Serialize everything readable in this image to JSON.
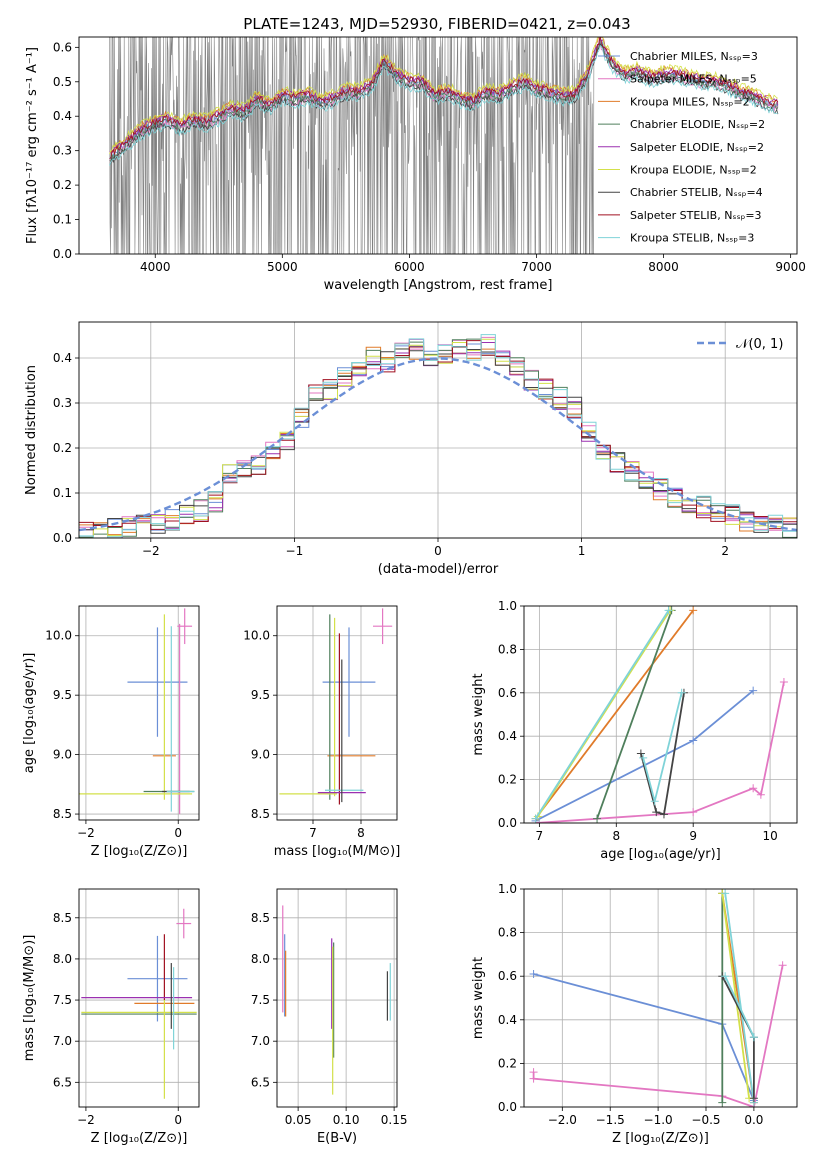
{
  "title": "PLATE=1243, MJD=52930, FIBERID=0421, z=0.043",
  "colors": [
    "#6b8fd6",
    "#e377c2",
    "#e07b2a",
    "#4f7f5c",
    "#9b30b0",
    "#d3e04a",
    "#444444",
    "#a01020",
    "#7fd3d8"
  ],
  "spectrum_chart": {
    "type": "line",
    "xlabel": "wavelength [Angstrom, rest frame]",
    "ylabel": "Flux [fλ10⁻¹⁷ erg cm⁻² s⁻¹ A⁻¹]",
    "xlim": [
      3400,
      9050
    ],
    "ylim": [
      0,
      0.63
    ],
    "xticks": [
      "4000",
      "5000",
      "6000",
      "7000",
      "8000",
      "9000"
    ],
    "yticks": [
      "0.0",
      "0.1",
      "0.2",
      "0.3",
      "0.4",
      "0.5",
      "0.6"
    ],
    "data_color": "#808080",
    "continuum_x": [
      3640,
      3700,
      3800,
      3900,
      4000,
      4100,
      4200,
      4300,
      4400,
      4500,
      4600,
      4700,
      4800,
      4900,
      5000,
      5100,
      5200,
      5300,
      5400,
      5500,
      5600,
      5700,
      5800,
      5900,
      6000,
      6100,
      6200,
      6300,
      6400,
      6500,
      6600,
      6700,
      6800,
      6900,
      7000,
      7100,
      7200,
      7300,
      7400,
      7500,
      7600,
      7700,
      7800,
      7900,
      8000,
      8100,
      8200,
      8300,
      8400,
      8500,
      8600,
      8700,
      8800,
      8900
    ],
    "continuum_y": [
      0.28,
      0.3,
      0.33,
      0.36,
      0.38,
      0.39,
      0.37,
      0.39,
      0.38,
      0.4,
      0.42,
      0.41,
      0.45,
      0.43,
      0.46,
      0.45,
      0.46,
      0.44,
      0.45,
      0.47,
      0.47,
      0.49,
      0.56,
      0.52,
      0.5,
      0.5,
      0.46,
      0.47,
      0.45,
      0.44,
      0.47,
      0.46,
      0.48,
      0.5,
      0.48,
      0.47,
      0.46,
      0.46,
      0.52,
      0.62,
      0.55,
      0.52,
      0.53,
      0.51,
      0.52,
      0.52,
      0.51,
      0.5,
      0.5,
      0.49,
      0.47,
      0.46,
      0.44,
      0.43
    ],
    "legend": [
      "Chabrier MILES, Nₛₛₚ=3",
      "Salpeter MILES, Nₛₛₚ=5",
      "Kroupa MILES, Nₛₛₚ=2",
      "Chabrier ELODIE, Nₛₛₚ=2",
      "Salpeter ELODIE, Nₛₛₚ=2",
      "Kroupa ELODIE, Nₛₛₚ=2",
      "Chabrier STELIB, Nₛₛₚ=4",
      "Salpeter STELIB, Nₛₛₚ=3",
      "Kroupa STELIB, Nₛₛₚ=3"
    ]
  },
  "residual_chart": {
    "type": "bar",
    "xlabel": "(data-model)/error",
    "ylabel": "Normed distribution",
    "xlim": [
      -2.5,
      2.5
    ],
    "ylim": [
      0,
      0.48
    ],
    "xticks": [
      "−2",
      "−1",
      "0",
      "1",
      "2"
    ],
    "yticks": [
      "0.0",
      "0.1",
      "0.2",
      "0.3",
      "0.4"
    ],
    "legend_label": "𝒩(0, 1)",
    "bin_width": 0.1,
    "bin_centers": [
      -2.45,
      -2.35,
      -2.25,
      -2.15,
      -2.05,
      -1.95,
      -1.85,
      -1.75,
      -1.65,
      -1.55,
      -1.45,
      -1.35,
      -1.25,
      -1.15,
      -1.05,
      -0.95,
      -0.85,
      -0.75,
      -0.65,
      -0.55,
      -0.45,
      -0.35,
      -0.25,
      -0.15,
      -0.05,
      0.05,
      0.15,
      0.25,
      0.35,
      0.45,
      0.55,
      0.65,
      0.75,
      0.85,
      0.95,
      1.05,
      1.15,
      1.25,
      1.35,
      1.45,
      1.55,
      1.65,
      1.75,
      1.85,
      1.95,
      2.05,
      2.15,
      2.25,
      2.35,
      2.45
    ],
    "density_mean": [
      0.01,
      0.012,
      0.02,
      0.025,
      0.03,
      0.03,
      0.04,
      0.05,
      0.06,
      0.08,
      0.14,
      0.15,
      0.16,
      0.19,
      0.22,
      0.27,
      0.32,
      0.33,
      0.36,
      0.38,
      0.4,
      0.39,
      0.41,
      0.42,
      0.4,
      0.41,
      0.42,
      0.42,
      0.43,
      0.4,
      0.38,
      0.35,
      0.33,
      0.31,
      0.29,
      0.24,
      0.2,
      0.17,
      0.15,
      0.13,
      0.11,
      0.09,
      0.08,
      0.07,
      0.06,
      0.05,
      0.04,
      0.035,
      0.03,
      0.025
    ],
    "gaussian": {
      "mean": 0,
      "sigma": 1
    }
  },
  "age_z_chart": {
    "type": "scatter",
    "xlabel": "Z [log₁₀(Z/Z⊙)]",
    "ylabel": "age  [log₁₀(age/yr)]",
    "xlim": [
      -2.15,
      0.45
    ],
    "ylim": [
      8.45,
      10.25
    ],
    "xticks": [
      {
        "v": -2,
        "t": "−2"
      },
      {
        "v": 0,
        "t": "0"
      }
    ],
    "yticks": [
      {
        "v": 8.5,
        "t": "8.5"
      },
      {
        "v": 9.0,
        "t": "9.0"
      },
      {
        "v": 9.5,
        "t": "9.5"
      },
      {
        "v": 10.0,
        "t": "10.0"
      }
    ],
    "points": [
      {
        "x": -0.45,
        "y": 9.61,
        "ex": 0.65,
        "ey": 0.46,
        "c": 0
      },
      {
        "x": 0.14,
        "y": 10.08,
        "ex": 0.16,
        "ey": 0.15,
        "c": 1
      },
      {
        "x": 0.03,
        "y": 9.3,
        "ex": 0,
        "ey": 0.8,
        "c": 1
      },
      {
        "x": -0.3,
        "y": 8.99,
        "ex": 0.25,
        "ey": 0,
        "c": 2
      },
      {
        "x": -0.3,
        "y": 9.4,
        "ex": 0,
        "ey": 0.78,
        "c": 5
      },
      {
        "x": -0.95,
        "y": 8.67,
        "ex": 1.25,
        "ey": 0,
        "c": 5
      },
      {
        "x": -0.2,
        "y": 8.69,
        "ex": 0.55,
        "ey": 0,
        "c": 3
      },
      {
        "x": -0.15,
        "y": 9.3,
        "ex": 0,
        "ey": 0.78,
        "c": 8
      },
      {
        "x": -0.05,
        "y": 8.69,
        "ex": 0.3,
        "ey": 0,
        "c": 6
      },
      {
        "x": 0.05,
        "y": 8.69,
        "ex": 0.3,
        "ey": 0,
        "c": 8
      }
    ]
  },
  "age_mass_chart": {
    "type": "scatter",
    "xlabel": "mass [log₁₀(M/M⊙)]",
    "ylabel": "",
    "xlim": [
      6.25,
      8.75
    ],
    "ylim": [
      8.45,
      10.25
    ],
    "xticks": [
      {
        "v": 7,
        "t": "7"
      },
      {
        "v": 8,
        "t": "8"
      }
    ],
    "yticks": [
      {
        "v": 8.5,
        "t": "8.5"
      },
      {
        "v": 9.0,
        "t": "9.0"
      },
      {
        "v": 9.5,
        "t": "9.5"
      },
      {
        "v": 10.0,
        "t": "10.0"
      }
    ],
    "points": [
      {
        "x": 7.75,
        "y": 9.61,
        "ex": 0.55,
        "ey": 0.46,
        "c": 0
      },
      {
        "x": 8.45,
        "y": 10.08,
        "ex": 0.2,
        "ey": 0.15,
        "c": 1
      },
      {
        "x": 7.8,
        "y": 8.99,
        "ex": 0.5,
        "ey": 0,
        "c": 2
      },
      {
        "x": 7.35,
        "y": 9.4,
        "ex": 0,
        "ey": 0.78,
        "c": 3
      },
      {
        "x": 7.45,
        "y": 9.4,
        "ex": 0,
        "ey": 0.75,
        "c": 5
      },
      {
        "x": 7.55,
        "y": 9.3,
        "ex": 0,
        "ey": 0.72,
        "c": 7
      },
      {
        "x": 6.9,
        "y": 8.67,
        "ex": 0.6,
        "ey": 0,
        "c": 5
      },
      {
        "x": 7.6,
        "y": 8.68,
        "ex": 0.5,
        "ey": 0,
        "c": 4
      },
      {
        "x": 7.65,
        "y": 8.7,
        "ex": 0.4,
        "ey": 0,
        "c": 8
      },
      {
        "x": 7.6,
        "y": 9.2,
        "ex": 0,
        "ey": 0.6,
        "c": 6
      }
    ]
  },
  "weight_age_chart": {
    "type": "line",
    "xlabel": "age  [log₁₀(age/yr)]",
    "ylabel": "mass weight",
    "xlim": [
      6.8,
      10.35
    ],
    "ylim": [
      0,
      1
    ],
    "xticks": [
      {
        "v": 7,
        "t": "7"
      },
      {
        "v": 8,
        "t": "8"
      },
      {
        "v": 9,
        "t": "9"
      },
      {
        "v": 10,
        "t": "10"
      }
    ],
    "yticks": [
      {
        "v": 0,
        "t": "0.0"
      },
      {
        "v": 0.2,
        "t": "0.2"
      },
      {
        "v": 0.4,
        "t": "0.4"
      },
      {
        "v": 0.6,
        "t": "0.6"
      },
      {
        "v": 0.8,
        "t": "0.8"
      },
      {
        "v": 1.0,
        "t": "1.0"
      }
    ],
    "series": [
      {
        "c": 0,
        "x": [
          6.95,
          9.0,
          9.78
        ],
        "y": [
          0.01,
          0.38,
          0.61
        ]
      },
      {
        "c": 1,
        "x": [
          6.95,
          9.0,
          9.78,
          9.88,
          10.18
        ],
        "y": [
          0.0,
          0.05,
          0.16,
          0.13,
          0.65
        ]
      },
      {
        "c": 2,
        "x": [
          6.95,
          9.0
        ],
        "y": [
          0.02,
          0.98
        ]
      },
      {
        "c": 3,
        "x": [
          7.75,
          8.72
        ],
        "y": [
          0.02,
          0.98
        ]
      },
      {
        "c": 5,
        "x": [
          6.98,
          8.7
        ],
        "y": [
          0.03,
          0.98
        ]
      },
      {
        "c": 8,
        "x": [
          6.95,
          8.68
        ],
        "y": [
          0.02,
          0.98
        ]
      },
      {
        "c": 6,
        "x": [
          8.32,
          8.52,
          8.62,
          8.88
        ],
        "y": [
          0.32,
          0.05,
          0.04,
          0.6
        ]
      },
      {
        "c": 8,
        "x": [
          8.35,
          8.5,
          8.85
        ],
        "y": [
          0.3,
          0.1,
          0.6
        ]
      }
    ]
  },
  "mass_z_chart": {
    "type": "scatter",
    "xlabel": "Z [log₁₀(Z/Z⊙)]",
    "ylabel": "mass [log₁₀(M/M⊙)]",
    "xlim": [
      -2.15,
      0.45
    ],
    "ylim": [
      6.2,
      8.85
    ],
    "xticks": [
      {
        "v": -2,
        "t": "−2"
      },
      {
        "v": 0,
        "t": "0"
      }
    ],
    "yticks": [
      {
        "v": 6.5,
        "t": "6.5"
      },
      {
        "v": 7.0,
        "t": "7.0"
      },
      {
        "v": 7.5,
        "t": "7.5"
      },
      {
        "v": 8.0,
        "t": "8.0"
      },
      {
        "v": 8.5,
        "t": "8.5"
      }
    ],
    "points": [
      {
        "x": -0.45,
        "y": 7.76,
        "ex": 0.65,
        "ey": 0.52,
        "c": 0
      },
      {
        "x": 0.12,
        "y": 8.43,
        "ex": 0.16,
        "ey": 0.18,
        "c": 1
      },
      {
        "x": -0.3,
        "y": 7.46,
        "ex": 0.65,
        "ey": 0,
        "c": 2
      },
      {
        "x": -0.3,
        "y": 7.9,
        "ex": 0,
        "ey": 0.4,
        "c": 7
      },
      {
        "x": -0.9,
        "y": 7.53,
        "ex": 1.2,
        "ey": 0,
        "c": 4
      },
      {
        "x": -0.85,
        "y": 7.35,
        "ex": 1.25,
        "ey": 0,
        "c": 5
      },
      {
        "x": -0.85,
        "y": 7.33,
        "ex": 1.25,
        "ey": 0,
        "c": 3
      },
      {
        "x": -0.3,
        "y": 6.9,
        "ex": 0,
        "ey": 0.6,
        "c": 5
      },
      {
        "x": -0.15,
        "y": 7.55,
        "ex": 0,
        "ey": 0.4,
        "c": 6
      },
      {
        "x": -0.1,
        "y": 7.4,
        "ex": 0,
        "ey": 0.5,
        "c": 8
      }
    ]
  },
  "mass_ebv_chart": {
    "type": "scatter",
    "xlabel": "E(B-V)",
    "ylabel": "",
    "xlim": [
      0.028,
      0.153
    ],
    "ylim": [
      6.2,
      8.85
    ],
    "xticks": [
      {
        "v": 0.05,
        "t": "0.05"
      },
      {
        "v": 0.1,
        "t": "0.10"
      },
      {
        "v": 0.15,
        "t": "0.15"
      }
    ],
    "yticks": [
      {
        "v": 6.5,
        "t": "6.5"
      },
      {
        "v": 7.0,
        "t": "7.0"
      },
      {
        "v": 7.5,
        "t": "7.5"
      },
      {
        "v": 8.0,
        "t": "8.0"
      },
      {
        "v": 8.5,
        "t": "8.5"
      }
    ],
    "points": [
      {
        "x": 0.034,
        "y": 8.0,
        "ex": 0,
        "ey": 0.65,
        "c": 1
      },
      {
        "x": 0.036,
        "y": 7.8,
        "ex": 0,
        "ey": 0.5,
        "c": 0
      },
      {
        "x": 0.037,
        "y": 7.7,
        "ex": 0,
        "ey": 0.4,
        "c": 2
      },
      {
        "x": 0.085,
        "y": 7.7,
        "ex": 0,
        "ey": 0.55,
        "c": 4
      },
      {
        "x": 0.087,
        "y": 7.5,
        "ex": 0,
        "ey": 0.7,
        "c": 3
      },
      {
        "x": 0.086,
        "y": 7.25,
        "ex": 0,
        "ey": 0.9,
        "c": 5
      },
      {
        "x": 0.143,
        "y": 7.55,
        "ex": 0,
        "ey": 0.3,
        "c": 6
      },
      {
        "x": 0.146,
        "y": 7.6,
        "ex": 0,
        "ey": 0.35,
        "c": 8
      }
    ]
  },
  "weight_z_chart": {
    "type": "line",
    "xlabel": "Z [log₁₀(Z/Z⊙)]",
    "ylabel": "mass weight",
    "xlim": [
      -2.4,
      0.45
    ],
    "ylim": [
      0,
      1
    ],
    "xticks": [
      {
        "v": -2.0,
        "t": "−2.0"
      },
      {
        "v": -1.5,
        "t": "−1.5"
      },
      {
        "v": -1.0,
        "t": "−1.0"
      },
      {
        "v": -0.5,
        "t": "−0.5"
      },
      {
        "v": 0.0,
        "t": "0.0"
      }
    ],
    "yticks": [
      {
        "v": 0,
        "t": "0.0"
      },
      {
        "v": 0.2,
        "t": "0.2"
      },
      {
        "v": 0.4,
        "t": "0.4"
      },
      {
        "v": 0.6,
        "t": "0.6"
      },
      {
        "v": 0.8,
        "t": "0.8"
      },
      {
        "v": 1.0,
        "t": "1.0"
      }
    ],
    "series": [
      {
        "c": 0,
        "x": [
          -2.3,
          -0.33,
          0.0
        ],
        "y": [
          0.61,
          0.38,
          0.03
        ]
      },
      {
        "c": 1,
        "x": [
          -2.3,
          -2.3,
          -0.33,
          0.0,
          0.3
        ],
        "y": [
          0.16,
          0.13,
          0.05,
          0.0,
          0.65
        ]
      },
      {
        "c": 2,
        "x": [
          -0.33,
          0.0
        ],
        "y": [
          0.98,
          0.02
        ]
      },
      {
        "c": 3,
        "x": [
          -0.33,
          -0.33
        ],
        "y": [
          0.02,
          0.98
        ]
      },
      {
        "c": 5,
        "x": [
          -0.33,
          -0.05
        ],
        "y": [
          0.98,
          0.04
        ]
      },
      {
        "c": 8,
        "x": [
          -0.3,
          0.0
        ],
        "y": [
          0.98,
          0.02
        ]
      },
      {
        "c": 6,
        "x": [
          -0.33,
          0.0,
          0.0
        ],
        "y": [
          0.6,
          0.32,
          0.04
        ]
      },
      {
        "c": 8,
        "x": [
          -0.3,
          0.0
        ],
        "y": [
          0.6,
          0.32
        ]
      }
    ]
  }
}
